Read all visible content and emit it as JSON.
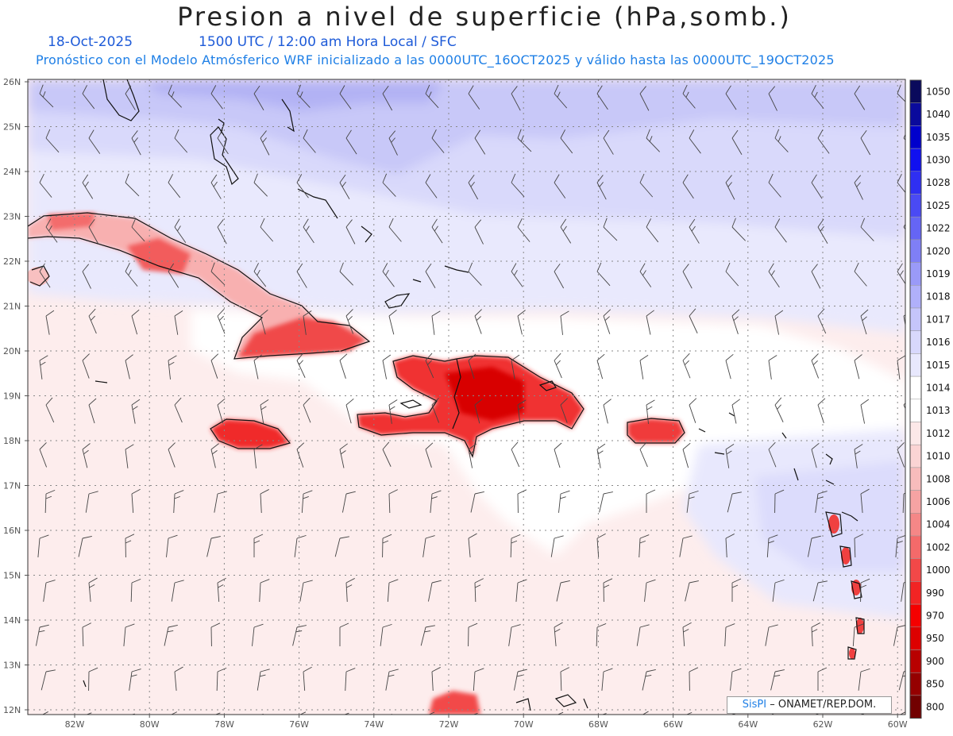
{
  "title": "Presion a nivel de superficie (hPa,somb.)",
  "date": "18-Oct-2025",
  "valid_time": "1500 UTC / 12:00 am Hora Local / SFC",
  "forecast_info": "Pronóstico con el Modelo Atmósferico WRF inicializado a las 0000UTC_16OCT2025 y válido hasta las  0000UTC_19OCT2025",
  "lat_labels": [
    "26N",
    "25N",
    "24N",
    "23N",
    "22N",
    "21N",
    "20N",
    "19N",
    "18N",
    "17N",
    "16N",
    "15N",
    "14N",
    "13N",
    "12N"
  ],
  "lon_labels": [
    "82W",
    "80W",
    "78W",
    "76W",
    "74W",
    "72W",
    "70W",
    "68W",
    "66W",
    "64W",
    "62W",
    "60W"
  ],
  "colorbar": {
    "labels": [
      "1050",
      "1040",
      "1035",
      "1030",
      "1028",
      "1025",
      "1022",
      "1020",
      "1019",
      "1018",
      "1017",
      "1016",
      "1015",
      "1014",
      "1013",
      "1012",
      "1010",
      "1008",
      "1006",
      "1004",
      "1002",
      "1000",
      "990",
      "970",
      "950",
      "900",
      "850",
      "800"
    ],
    "colors": [
      "#0a0a5c",
      "#0a0a9c",
      "#0000cc",
      "#1010f0",
      "#2f2ff2",
      "#4a4af4",
      "#6565f5",
      "#7f7ff6",
      "#9a9af8",
      "#b0b0fa",
      "#c5c5fb",
      "#d8d8fc",
      "#e8e8fd",
      "#ffffff",
      "#ffffff",
      "#fce8e8",
      "#fbd4d4",
      "#f8bcbc",
      "#f6a3a3",
      "#f58787",
      "#f46a6a",
      "#f24848",
      "#f22424",
      "#f50000",
      "#dd0000",
      "#b80000",
      "#950000",
      "#720000"
    ]
  },
  "credit": {
    "brand": "SisPI",
    "org": " – ONAMET/REP.DOM."
  }
}
